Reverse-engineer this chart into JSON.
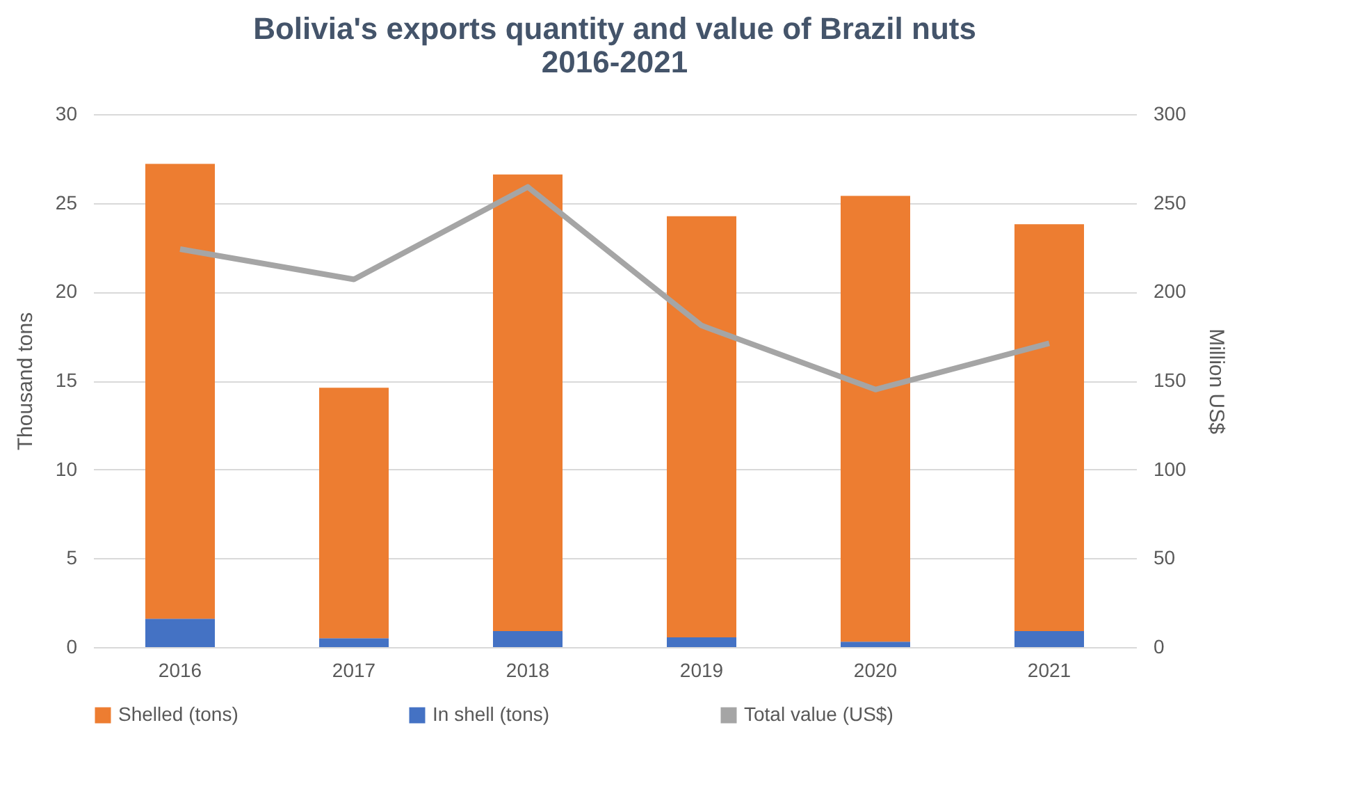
{
  "chart_data": {
    "type": "bar",
    "title": "Bolivia's exports quantity and value of Brazil nuts\n2016-2021",
    "categories": [
      "2016",
      "2017",
      "2018",
      "2019",
      "2020",
      "2021"
    ],
    "stacked": true,
    "ylabel": "Thousand tons",
    "y2label": "Million US$",
    "ylim": [
      0,
      30
    ],
    "yticks": [
      0,
      5,
      10,
      15,
      20,
      25,
      30
    ],
    "y2lim": [
      0,
      300
    ],
    "y2ticks": [
      0,
      50,
      100,
      150,
      200,
      250,
      300
    ],
    "grid": "y",
    "legend": "bottom",
    "series": [
      {
        "name": "In shell (tons)",
        "color": "#4472c4",
        "values": [
          1.6,
          0.5,
          0.9,
          0.55,
          0.3,
          0.9
        ]
      },
      {
        "name": "Shelled (tons)",
        "color": "#ed7d31",
        "values": [
          25.6,
          14.1,
          25.7,
          23.7,
          25.1,
          22.9
        ]
      },
      {
        "name": "Total value (US$)",
        "type": "line",
        "axis": "y2",
        "color": "#a5a5a5",
        "values": [
          224,
          207,
          259,
          181,
          145,
          171
        ]
      }
    ]
  }
}
